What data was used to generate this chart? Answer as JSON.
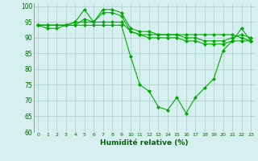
{
  "title": "",
  "xlabel": "Humidité relative (%)",
  "ylabel": "",
  "bg_color": "#d6f0f0",
  "grid_color": "#aacccc",
  "line_color": "#00aa00",
  "ylim": [
    60,
    101
  ],
  "xlim": [
    -0.5,
    23.5
  ],
  "yticks": [
    60,
    65,
    70,
    75,
    80,
    85,
    90,
    95,
    100
  ],
  "xticks": [
    0,
    1,
    2,
    3,
    4,
    5,
    6,
    7,
    8,
    9,
    10,
    11,
    12,
    13,
    14,
    15,
    16,
    17,
    18,
    19,
    20,
    21,
    22,
    23
  ],
  "series": [
    [
      94,
      94,
      94,
      94,
      94,
      96,
      95,
      99,
      99,
      98,
      93,
      92,
      92,
      91,
      91,
      91,
      90,
      90,
      89,
      89,
      89,
      90,
      91,
      90
    ],
    [
      94,
      94,
      94,
      94,
      95,
      95,
      95,
      95,
      95,
      95,
      92,
      91,
      91,
      91,
      91,
      91,
      91,
      91,
      91,
      91,
      91,
      91,
      90,
      89
    ],
    [
      94,
      93,
      93,
      94,
      95,
      99,
      95,
      98,
      98,
      97,
      92,
      91,
      90,
      90,
      90,
      90,
      89,
      89,
      88,
      88,
      88,
      89,
      89,
      89
    ],
    [
      94,
      94,
      94,
      94,
      94,
      94,
      94,
      94,
      94,
      94,
      84,
      75,
      73,
      68,
      67,
      71,
      66,
      71,
      74,
      77,
      86,
      89,
      93,
      89
    ]
  ]
}
